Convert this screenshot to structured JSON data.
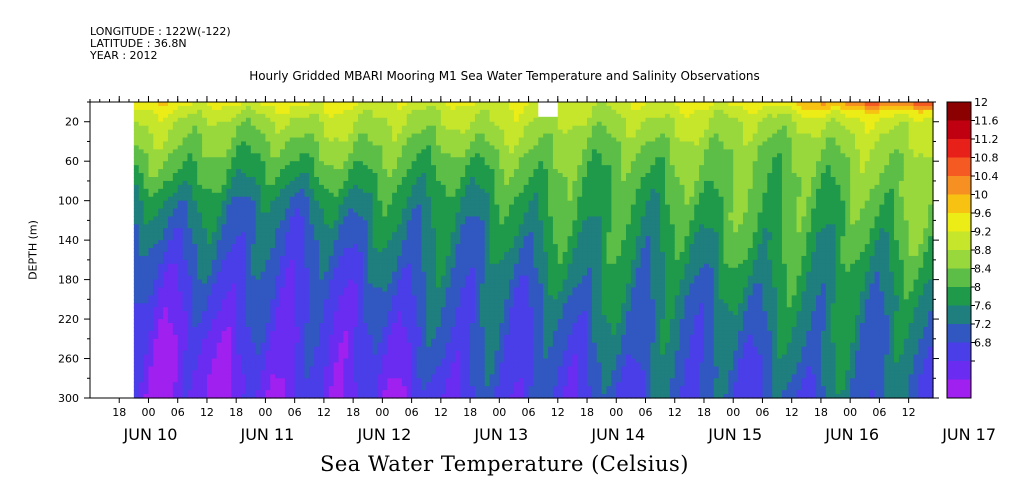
{
  "header": {
    "longitude": "LONGITUDE : 122W(-122)",
    "latitude": "LATITUDE : 36.8N",
    "year": "YEAR : 2012"
  },
  "chart_data": {
    "type": "heatmap",
    "title": "Hourly Gridded MBARI Mooring M1 Sea Water Temperature and Salinity Observations",
    "xlabel": "",
    "ylabel": "DEPTH (m)",
    "colorbar_title": "Sea Water Temperature (Celsius)",
    "xlim_hours": [
      0,
      173
    ],
    "ylim": [
      300,
      0
    ],
    "data_start_hour": 9,
    "x_ticks": {
      "hour_labels": [
        "18",
        "00",
        "06",
        "12",
        "18",
        "00",
        "06",
        "12",
        "18",
        "00",
        "06",
        "12",
        "18",
        "00",
        "06",
        "12",
        "18",
        "00",
        "06",
        "12",
        "18",
        "00",
        "06",
        "12",
        "18",
        "00",
        "06",
        "12"
      ],
      "day_labels": [
        "JUN 10",
        "JUN 11",
        "JUN 12",
        "JUN 13",
        "JUN 14",
        "JUN 15",
        "JUN 16",
        "JUN 17"
      ]
    },
    "y_ticks": [
      20,
      60,
      100,
      140,
      180,
      220,
      260,
      300
    ],
    "colorbar": {
      "levels": [
        12,
        11.6,
        11.2,
        10.8,
        10.4,
        10,
        9.6,
        9.2,
        8.8,
        8.4,
        8,
        7.6,
        7.2,
        6.8
      ],
      "colors": [
        "#8b0000",
        "#c00010",
        "#e8201a",
        "#f45a22",
        "#f79022",
        "#f7c212",
        "#ecec16",
        "#c6e62c",
        "#98d83c",
        "#5cbe46",
        "#1f9a4a",
        "#1f7e7e",
        "#3058c0",
        "#4a3ee8",
        "#6a2cf0",
        "#a020f0"
      ]
    },
    "profile": {
      "depths": [
        0,
        10,
        20,
        40,
        60,
        80,
        100,
        130,
        160,
        200,
        240,
        280,
        300
      ],
      "keyframes": [
        {
          "hour": 9,
          "temps": [
            10.3,
            9.9,
            9.6,
            9.3,
            9.0,
            8.7,
            8.3,
            8.0,
            7.7,
            7.4,
            7.1,
            6.9,
            6.8
          ]
        },
        {
          "hour": 36,
          "temps": [
            10.1,
            9.8,
            9.5,
            9.2,
            8.9,
            8.6,
            8.2,
            7.9,
            7.7,
            7.4,
            7.2,
            7.0,
            7.0
          ]
        },
        {
          "hour": 60,
          "temps": [
            10.0,
            9.8,
            9.6,
            9.3,
            9.0,
            8.7,
            8.4,
            8.1,
            7.9,
            7.6,
            7.4,
            7.2,
            7.1
          ]
        },
        {
          "hour": 84,
          "temps": [
            9.9,
            9.7,
            9.6,
            9.3,
            9.0,
            8.8,
            8.6,
            8.4,
            8.2,
            7.9,
            7.7,
            7.5,
            7.4
          ]
        },
        {
          "hour": 108,
          "temps": [
            9.9,
            9.7,
            9.6,
            9.3,
            9.1,
            8.9,
            8.8,
            8.6,
            8.4,
            8.1,
            7.9,
            7.7,
            7.6
          ]
        },
        {
          "hour": 132,
          "temps": [
            10.2,
            9.8,
            9.6,
            9.3,
            9.1,
            9.0,
            8.9,
            8.7,
            8.5,
            8.2,
            8.0,
            7.8,
            7.7
          ]
        },
        {
          "hour": 150,
          "temps": [
            10.8,
            10.1,
            9.7,
            9.4,
            9.2,
            9.1,
            9.0,
            8.8,
            8.6,
            8.3,
            8.1,
            7.9,
            7.8
          ]
        },
        {
          "hour": 173,
          "temps": [
            11.8,
            10.3,
            9.8,
            9.5,
            9.3,
            9.2,
            9.1,
            8.9,
            8.7,
            8.4,
            8.2,
            8.0,
            7.9
          ]
        }
      ]
    },
    "missing_block": {
      "hour_start": 92,
      "hour_end": 96,
      "depth_start": 0,
      "depth_end": 15
    }
  }
}
